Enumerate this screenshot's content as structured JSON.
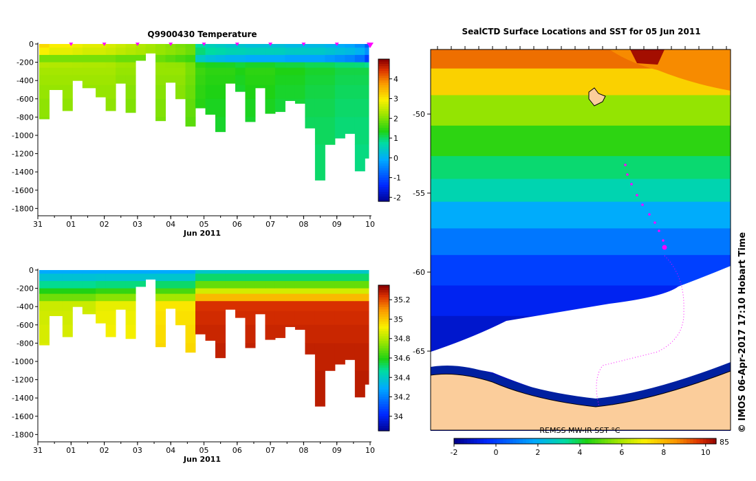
{
  "chart_data": [
    {
      "type": "heatmap",
      "id": "temperature-section",
      "title": "Q9900430  Temperature",
      "xlabel": "Jun 2011",
      "ylabel": "",
      "xticks": [
        "31",
        "01",
        "02",
        "03",
        "04",
        "05",
        "06",
        "07",
        "08",
        "09",
        "10"
      ],
      "xlim": [
        31,
        10.1
      ],
      "yticks": [
        "0",
        "-200",
        "-400",
        "-600",
        "-800",
        "-1000",
        "-1200",
        "-1400",
        "-1600",
        "-1800"
      ],
      "ylim": [
        -1850,
        0
      ],
      "colorbar": {
        "ticks": [
          "4",
          "3",
          "2",
          "1",
          "0",
          "-1",
          "-2"
        ],
        "range": [
          -2.2,
          5
        ]
      },
      "profile_times": [
        31.0,
        31.3,
        31.7,
        1.0,
        1.3,
        1.7,
        2.0,
        2.3,
        2.6,
        2.9,
        3.2,
        3.5,
        3.8,
        4.1,
        4.4,
        4.7,
        5.0,
        5.3,
        5.6,
        5.9,
        6.2,
        6.5,
        6.8,
        7.1,
        7.4,
        7.7,
        8.0,
        8.3,
        8.6,
        8.9,
        9.2,
        9.5,
        9.8
      ],
      "profile_max_depth": [
        820,
        500,
        730,
        400,
        480,
        580,
        730,
        430,
        750,
        180,
        100,
        840,
        420,
        600,
        900,
        700,
        770,
        960,
        430,
        520,
        850,
        480,
        760,
        740,
        620,
        650,
        920,
        1490,
        1100,
        1030,
        980,
        1390,
        1250
      ],
      "surface_temp": [
        3.2,
        3.0,
        3.0,
        2.9,
        2.8,
        2.8,
        2.7,
        2.6,
        2.5,
        2.4,
        2.3,
        2.2,
        2.1,
        2.0,
        1.9,
        0.8,
        0.6,
        0.5,
        0.4,
        0.4,
        0.3,
        0.3,
        0.3,
        0.3,
        0.2,
        0.2,
        0.2,
        0.2,
        0.1,
        0.0,
        -0.1,
        -0.3,
        -0.8
      ],
      "deep_temp": [
        2.3,
        2.3,
        2.3,
        2.3,
        2.3,
        2.3,
        2.3,
        2.2,
        2.2,
        2.2,
        2.2,
        2.2,
        2.2,
        2.2,
        2.0,
        1.6,
        1.5,
        1.5,
        1.5,
        1.4,
        1.5,
        1.5,
        1.5,
        1.4,
        1.4,
        1.4,
        1.3,
        1.3,
        1.3,
        1.2,
        1.2,
        1.2,
        1.2
      ],
      "pink_markers": [
        "01",
        "02",
        "03",
        "04",
        "05",
        "06",
        "07",
        "08",
        "09",
        "10"
      ]
    },
    {
      "type": "heatmap",
      "id": "salinity-section",
      "title": "",
      "xlabel": "Jun 2011",
      "xticks": [
        "31",
        "01",
        "02",
        "03",
        "04",
        "05",
        "06",
        "07",
        "08",
        "09",
        "10"
      ],
      "yticks": [
        "0",
        "-200",
        "-400",
        "-600",
        "-800",
        "-1000",
        "-1200",
        "-1400",
        "-1600",
        "-1800"
      ],
      "ylim": [
        -1850,
        0
      ],
      "colorbar": {
        "ticks": [
          "35.2",
          "35",
          "34.8",
          "34.6",
          "34.4",
          "34.2",
          "34"
        ],
        "range": [
          33.85,
          35.35
        ]
      },
      "surface_sal": [
        34.3,
        34.3,
        34.3,
        34.3,
        34.3,
        34.3,
        34.3,
        34.3,
        34.3,
        34.3,
        34.3,
        34.3,
        34.3,
        34.3,
        34.3,
        34.4,
        34.4,
        34.4,
        34.4,
        34.4,
        34.4,
        34.4,
        34.4,
        34.4,
        34.4,
        34.4,
        34.4,
        34.4,
        34.4,
        34.4,
        34.4,
        34.4,
        34.4
      ],
      "deep_sal": [
        34.85,
        34.85,
        34.85,
        34.85,
        34.85,
        34.9,
        34.9,
        34.9,
        34.9,
        34.9,
        34.9,
        34.95,
        34.95,
        34.95,
        34.95,
        35.25,
        35.25,
        35.25,
        35.25,
        35.25,
        35.25,
        35.25,
        35.25,
        35.25,
        35.25,
        35.25,
        35.25,
        35.25,
        35.25,
        35.25,
        35.25,
        35.25,
        35.25
      ]
    },
    {
      "type": "map",
      "id": "sst-map",
      "title": "SealCTD Surface Locations and SST for 05 Jun 2011",
      "lat_ticks": [
        "-50",
        "-55",
        "-60",
        "-65"
      ],
      "colorbar_label": "REMSS MW-IR SST °C",
      "colorbar_ticks": [
        "-2",
        "0",
        "2",
        "4",
        "6",
        "8",
        "10"
      ],
      "colorbar_range": [
        -2,
        10.5
      ],
      "colorbar_partial_label": "85"
    }
  ],
  "credit": "© IMOS 06-Apr-2017 17:10 Hobart Time"
}
